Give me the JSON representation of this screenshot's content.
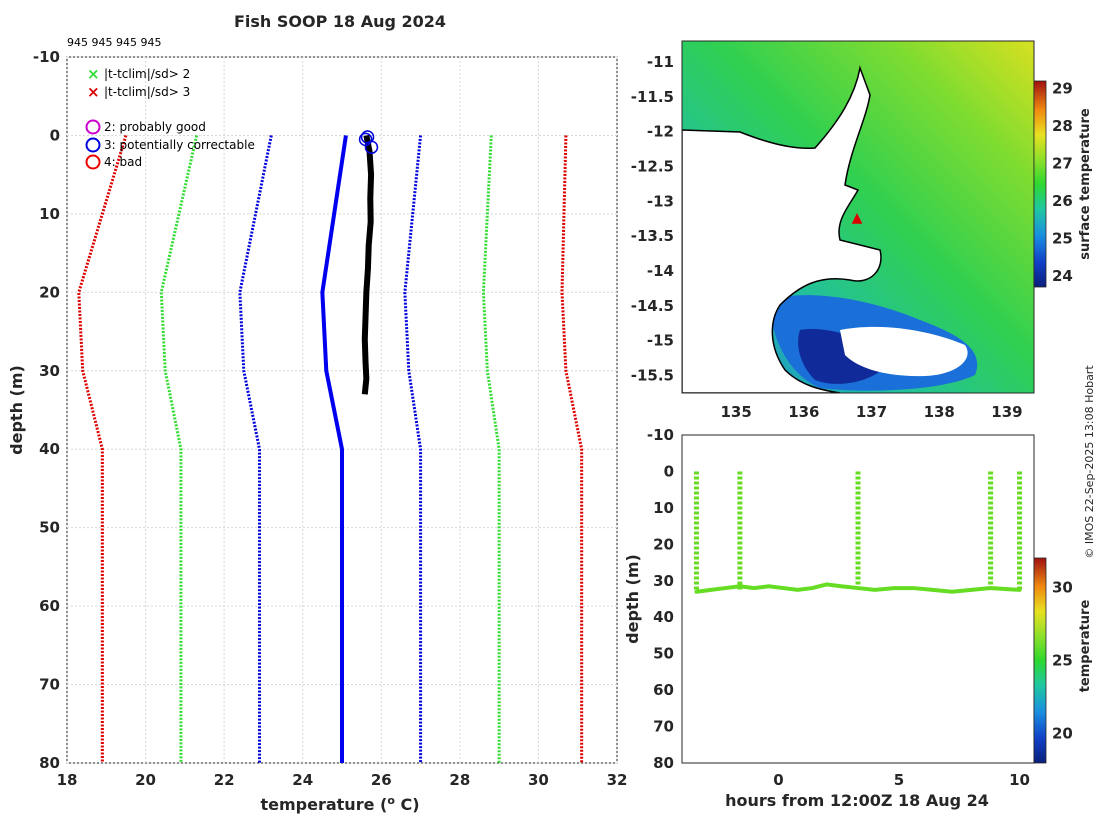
{
  "title": "Fish SOOP 18 Aug 2024",
  "cast_ids": "945 945 945 945",
  "credit": "© IMOS 22-Sep-2025 13:08 Hobart",
  "colors": {
    "qc2": "#cc00cc",
    "qc3": "#0000dd",
    "qc4": "#ee0000",
    "sd2": "#33dd33",
    "sd3": "#dd0000",
    "profile": "#000000",
    "clim": "#0000ee"
  },
  "legend": {
    "sd2": "|t-tclim|/sd> 2",
    "sd3": "|t-tclim|/sd> 3",
    "qc2": "2: probably good",
    "qc3": "3: potentially correctable",
    "qc4": "4: bad"
  },
  "chart_data": [
    {
      "id": "profile",
      "type": "line",
      "xlabel": "temperature (",
      "xlabel_sup": "o",
      "xlabel_end": " C)",
      "ylabel": "depth (m)",
      "xlim": [
        18,
        32
      ],
      "ylim": [
        -10,
        80
      ],
      "xticks": [
        "18",
        "20",
        "22",
        "24",
        "26",
        "28",
        "30",
        "32"
      ],
      "yticks": [
        "-10",
        "0",
        "10",
        "20",
        "30",
        "40",
        "50",
        "60",
        "70",
        "80"
      ],
      "grid": true,
      "climatology": {
        "depth": [
          0,
          20,
          30,
          40,
          80
        ],
        "mean": [
          25.1,
          24.5,
          24.6,
          25.0,
          25.0
        ],
        "bands": [
          {
            "name": "+3sd",
            "style": "red",
            "values": [
              30.7,
              30.6,
              30.7,
              31.1,
              31.1
            ]
          },
          {
            "name": "+2sd",
            "style": "green",
            "values": [
              28.8,
              28.6,
              28.7,
              29.0,
              29.0
            ]
          },
          {
            "name": "+1sd",
            "style": "blue",
            "values": [
              27.0,
              26.6,
              26.7,
              27.0,
              27.0
            ]
          },
          {
            "name": "-1sd",
            "style": "blue",
            "values": [
              23.2,
              22.4,
              22.5,
              22.9,
              22.9
            ]
          },
          {
            "name": "-2sd",
            "style": "green",
            "values": [
              21.3,
              20.4,
              20.5,
              20.9,
              20.9
            ]
          },
          {
            "name": "-3sd",
            "style": "red",
            "values": [
              19.5,
              18.3,
              18.4,
              18.9,
              18.9
            ]
          }
        ]
      },
      "observed": {
        "depth": [
          0,
          2,
          5,
          8,
          11,
          14,
          17,
          20,
          23,
          26,
          29,
          31,
          33
        ],
        "temp": [
          25.62,
          25.7,
          25.74,
          25.72,
          25.73,
          25.68,
          25.66,
          25.62,
          25.6,
          25.58,
          25.6,
          25.62,
          25.58
        ]
      },
      "qc_markers": [
        {
          "flag": 3,
          "temp": 25.6,
          "depth": 0.5
        },
        {
          "flag": 3,
          "temp": 25.65,
          "depth": 0.2
        },
        {
          "flag": 3,
          "temp": 25.75,
          "depth": 1.5
        }
      ]
    },
    {
      "id": "sst_map",
      "type": "heatmap",
      "xticks": [
        "135",
        "136",
        "137",
        "138",
        "139"
      ],
      "yticks": [
        "-11",
        "-11.5",
        "-12",
        "-12.5",
        "-13",
        "-13.5",
        "-14",
        "-14.5",
        "-15",
        "-15.5"
      ],
      "xlim": [
        134.2,
        139.4
      ],
      "ylim": [
        -15.75,
        -10.7
      ],
      "position": {
        "lon": 136.75,
        "lat": -13.18
      },
      "colorbar": {
        "label": "surface temperature",
        "ticks": [
          "24",
          "25",
          "26",
          "27",
          "28",
          "29"
        ],
        "range": [
          23.7,
          29.2
        ]
      }
    },
    {
      "id": "depth_time",
      "type": "scatter",
      "xlabel": "hours from 12:00Z 18 Aug 24",
      "ylabel": "depth (m)",
      "xlim": [
        -4,
        10.6
      ],
      "ylim": [
        -10,
        80
      ],
      "xticks": [
        "0",
        "5",
        "10"
      ],
      "yticks": [
        "-10",
        "0",
        "10",
        "20",
        "30",
        "40",
        "50",
        "60",
        "70",
        "80"
      ],
      "colorbar": {
        "label": "temperature",
        "ticks": [
          "20",
          "25",
          "30"
        ],
        "range": [
          18,
          32
        ]
      },
      "casts_hours": [
        -3.4,
        -1.6,
        3.3,
        8.8,
        10.0
      ],
      "bottom_depth": [
        33,
        32.5,
        32,
        31.5,
        32,
        31.5,
        32,
        32.5,
        32,
        31,
        31.5,
        32,
        32.5,
        32,
        32,
        32.5,
        33,
        32.5,
        32,
        32.5
      ],
      "hours": [
        -3.4,
        -2.8,
        -2.2,
        -1.6,
        -1.0,
        -0.4,
        0.2,
        0.8,
        1.4,
        2.0,
        2.6,
        3.3,
        4.0,
        4.8,
        5.6,
        6.4,
        7.2,
        8.0,
        8.8,
        10.0
      ]
    }
  ]
}
